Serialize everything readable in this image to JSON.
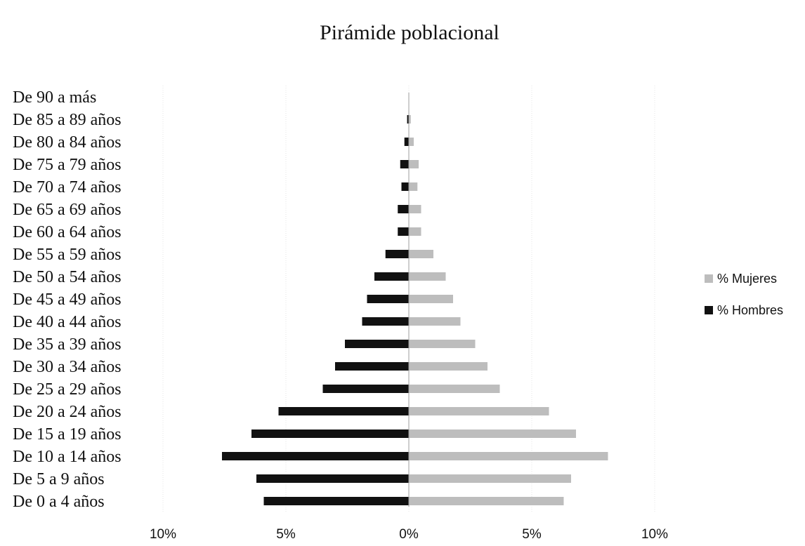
{
  "chart_data": {
    "type": "bar",
    "orientation": "horizontal",
    "title": "Pirámide poblacional",
    "categories": [
      "De 0 a 4 años",
      "De 5 a 9 años",
      "De 10 a 14 años",
      "De 15 a 19 años",
      "De 20 a 24 años",
      "De 25 a 29 años",
      "De 30 a 34 años",
      "De 35 a 39 años",
      "De 40 a 44 años",
      "De 45 a 49 años",
      "De 50 a 54 años",
      "De 55 a 59 años",
      "De 60 a 64 años",
      "De 65 a 69 años",
      "De 70 a 74 años",
      "De 75 a 79 años",
      "De 80 a 84 años",
      "De 85 a 89 años",
      "De 90 a más"
    ],
    "series": [
      {
        "name": "% Mujeres",
        "color": "#bdbdbd",
        "values": [
          6.3,
          6.6,
          8.1,
          6.8,
          5.7,
          3.7,
          3.2,
          2.7,
          2.1,
          1.8,
          1.5,
          1.0,
          0.5,
          0.5,
          0.35,
          0.4,
          0.2,
          0.08,
          0.0
        ]
      },
      {
        "name": "% Hombres",
        "color": "#111111",
        "values": [
          -5.9,
          -6.2,
          -7.6,
          -6.4,
          -5.3,
          -3.5,
          -3.0,
          -2.6,
          -1.9,
          -1.7,
          -1.4,
          -0.95,
          -0.45,
          -0.45,
          -0.3,
          -0.35,
          -0.18,
          -0.07,
          0.0
        ]
      }
    ],
    "x_ticks": [
      "10%",
      "5%",
      "0%",
      "5%",
      "10%"
    ],
    "xlim": [
      -10,
      10
    ],
    "grid": true,
    "legend_position": "right"
  }
}
